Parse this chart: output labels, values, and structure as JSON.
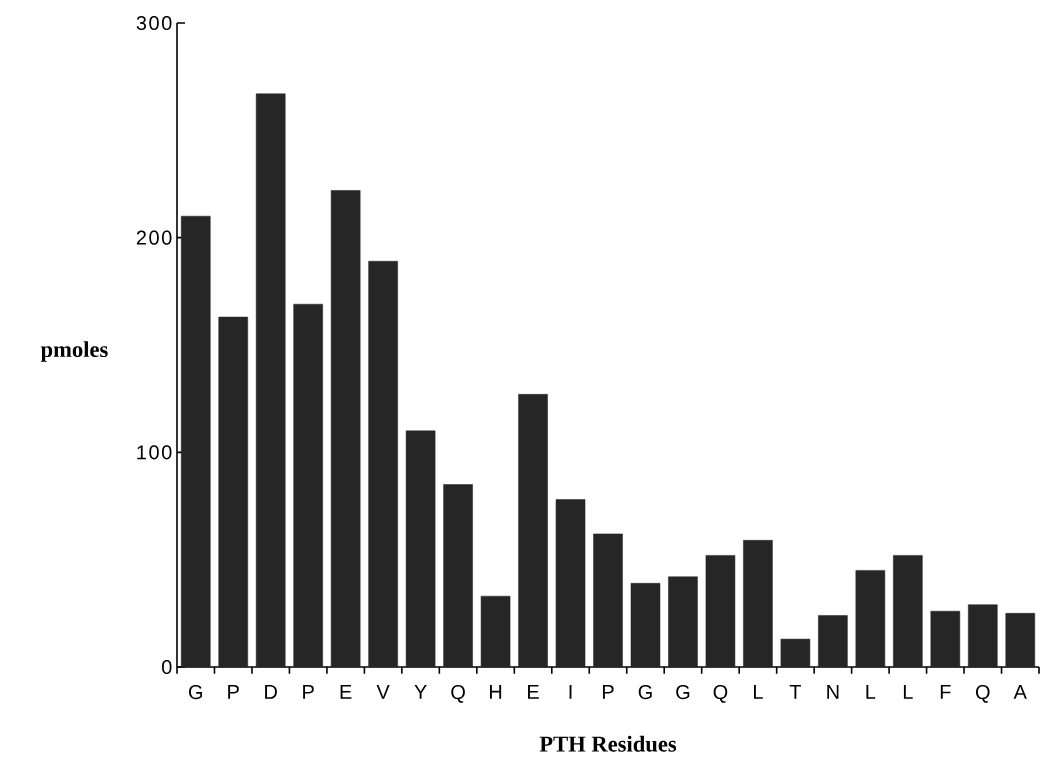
{
  "chart_data": {
    "type": "bar",
    "xlabel": "PTH Residues",
    "ylabel": "pmoles",
    "categories": [
      "G",
      "P",
      "D",
      "P",
      "E",
      "V",
      "Y",
      "Q",
      "H",
      "E",
      "I",
      "P",
      "G",
      "G",
      "Q",
      "L",
      "T",
      "N",
      "L",
      "L",
      "F",
      "Q",
      "A"
    ],
    "values": [
      210,
      163,
      267,
      169,
      222,
      189,
      110,
      85,
      33,
      127,
      78,
      62,
      39,
      42,
      52,
      59,
      13,
      24,
      45,
      52,
      26,
      29,
      25
    ],
    "color": "#262626",
    "ylim": [
      0,
      300
    ],
    "yticks": [
      0,
      100,
      200,
      300
    ]
  }
}
